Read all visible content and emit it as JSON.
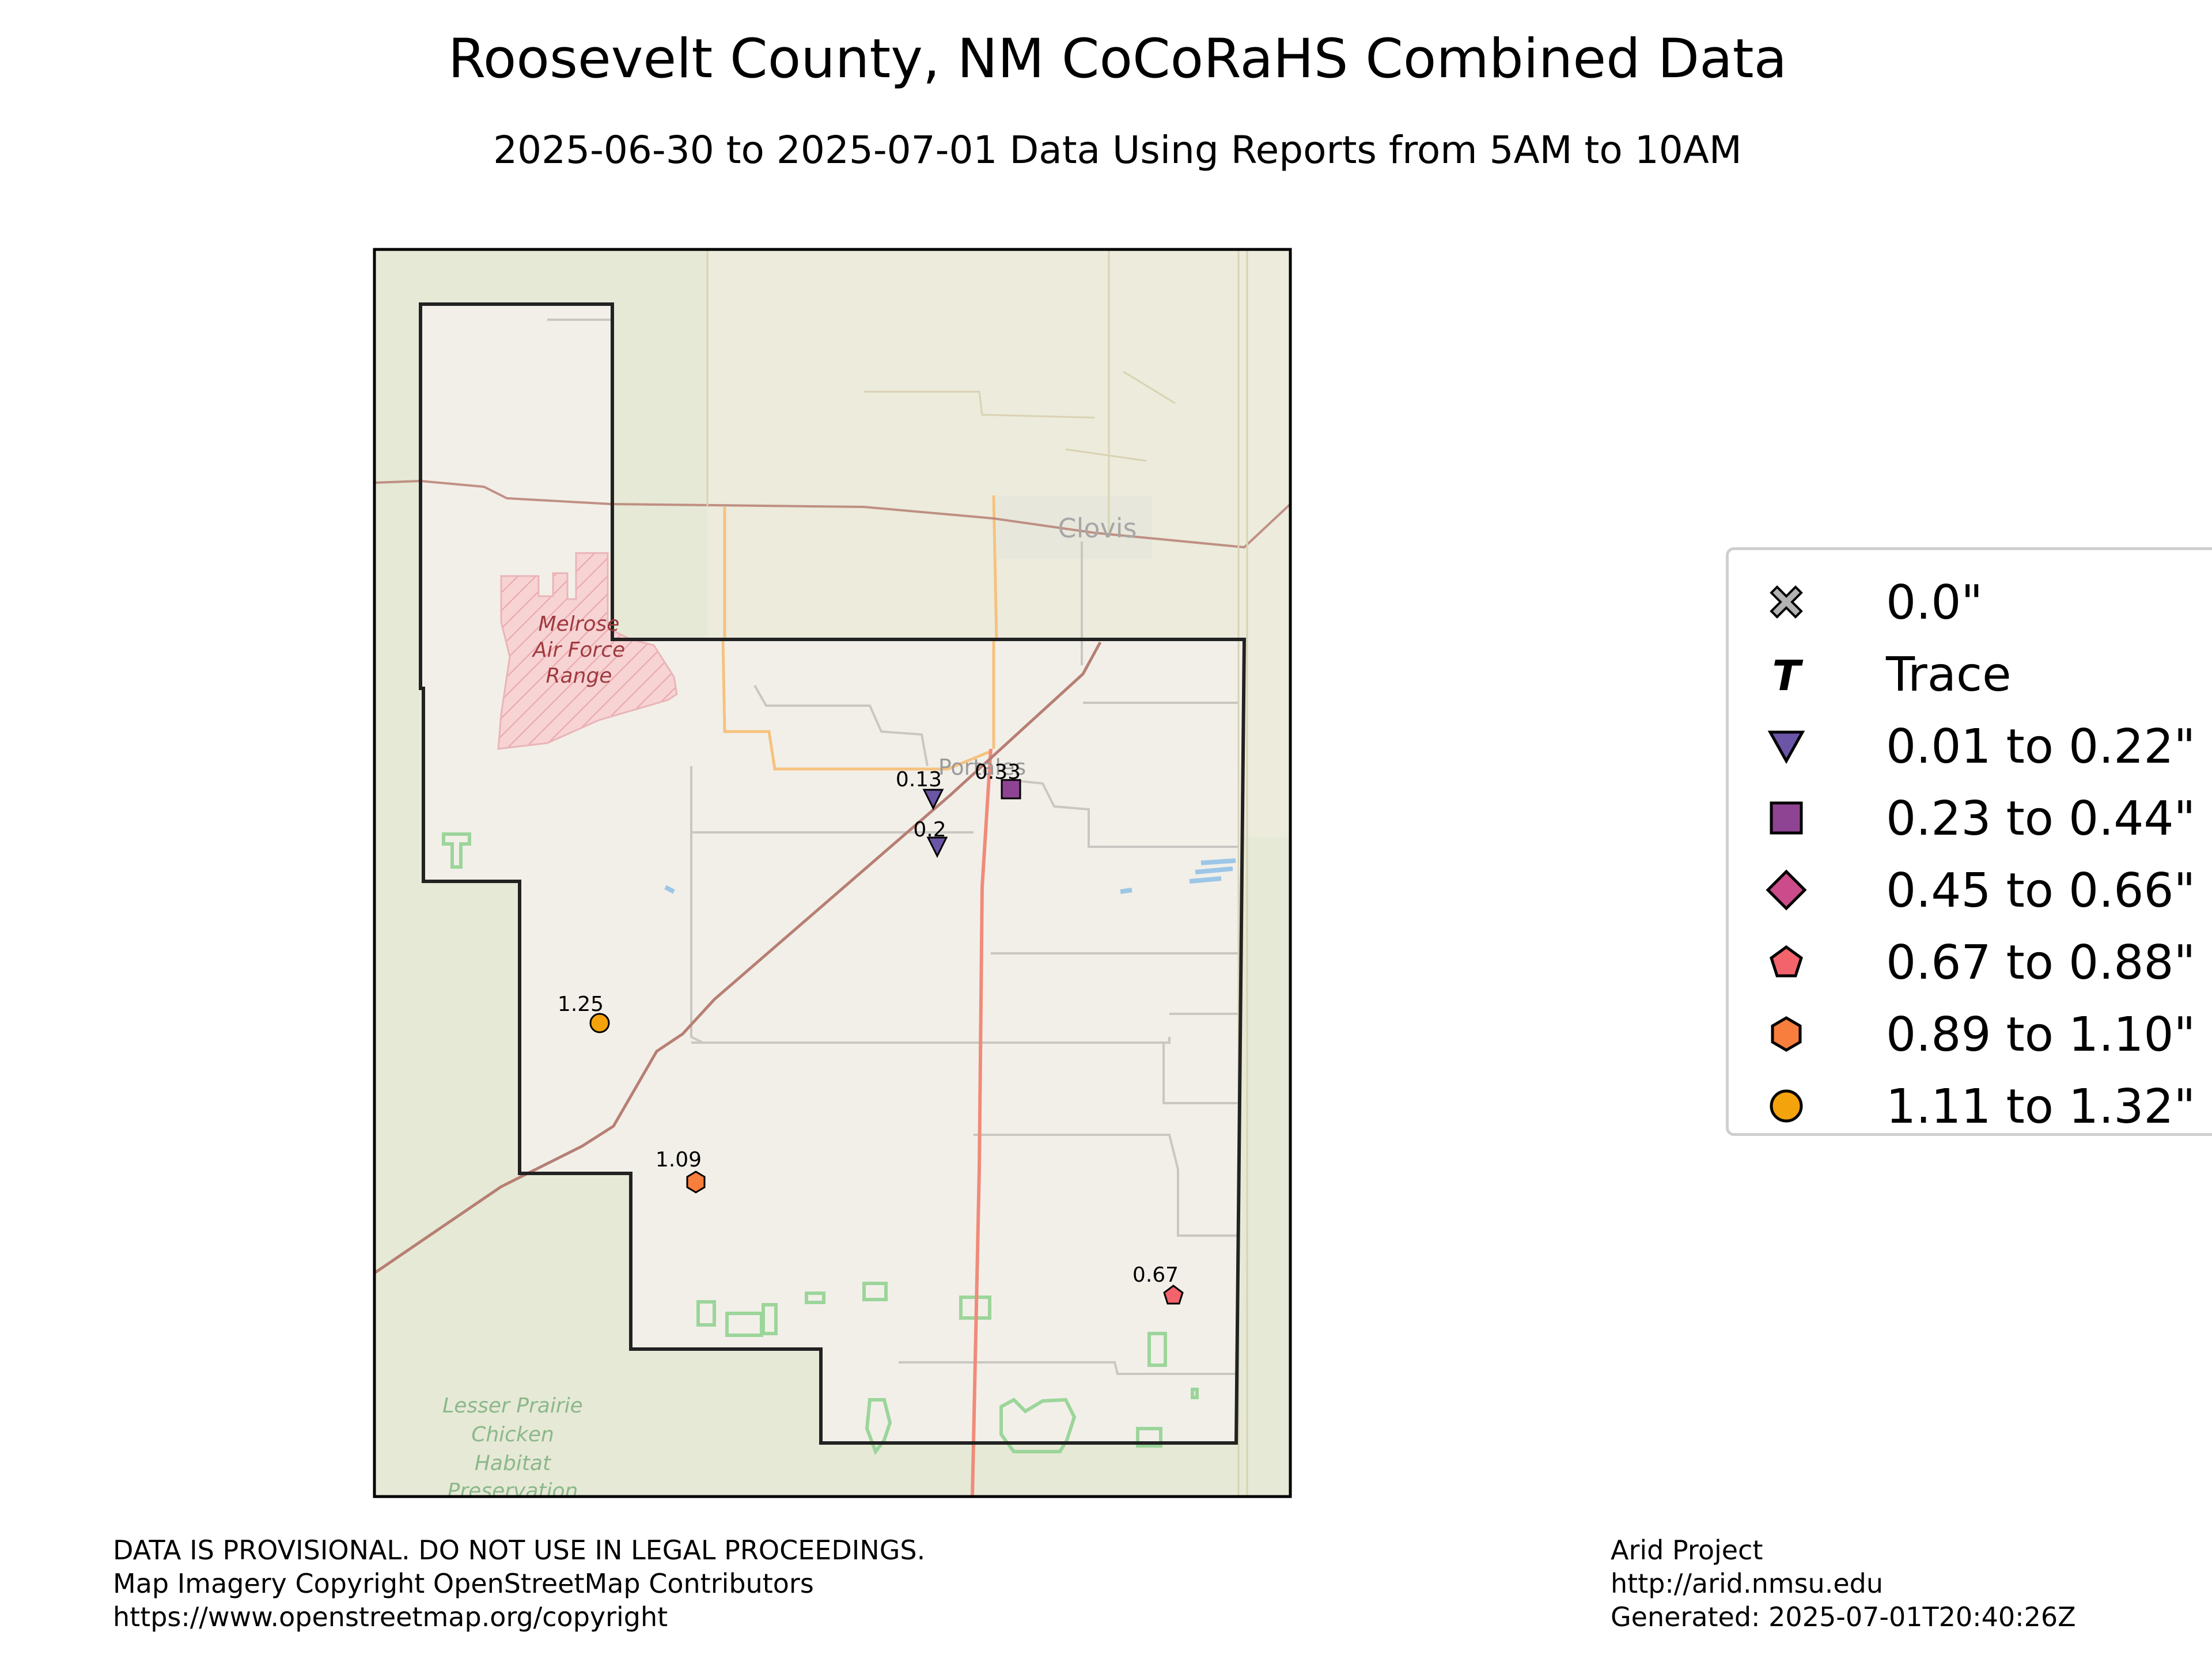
{
  "title": "Roosevelt County, NM CoCoRaHS Combined Data",
  "subtitle": "2025-06-30 to 2025-07-01 Data Using Reports from 5AM to 10AM",
  "map": {
    "places": {
      "clovis": "Clovis",
      "portales": "Portales",
      "melrose": [
        "Melrose",
        "Air Force",
        "Range"
      ],
      "lesser_prairie": [
        "Lesser Prairie",
        "Chicken",
        "Habitat",
        "Preservation"
      ]
    },
    "colors": {
      "land": "#f2efe9",
      "grassland": "#e6e9d6",
      "county_border": "#222222",
      "military_fill": "#f5c6c8",
      "protected_green": "#9cd59a",
      "railway": "#b77f73",
      "primary_road": "#f08b79",
      "secondary_road": "#f6c27f"
    }
  },
  "legend": {
    "items": [
      {
        "label": "0.0\"",
        "icon": "x-marker",
        "color": "#b3b3b3"
      },
      {
        "label": "Trace",
        "icon": "trace-t",
        "color": "#000000"
      },
      {
        "label": "0.01 to 0.22\"",
        "icon": "triangle-down",
        "color": "#6b55a6"
      },
      {
        "label": "0.23 to 0.44\"",
        "icon": "square",
        "color": "#8f4393"
      },
      {
        "label": "0.45 to 0.66\"",
        "icon": "diamond",
        "color": "#cc4c8b"
      },
      {
        "label": "0.67 to 0.88\"",
        "icon": "pentagon",
        "color": "#f2636b"
      },
      {
        "label": "0.89 to 1.10\"",
        "icon": "hexagon",
        "color": "#f77e3c"
      },
      {
        "label": "1.11 to 1.32\"",
        "icon": "circle",
        "color": "#f4a30c"
      }
    ]
  },
  "observations": [
    {
      "value": "0.13",
      "category": "0.01 to 0.22\""
    },
    {
      "value": "0.33",
      "category": "0.23 to 0.44\""
    },
    {
      "value": "0.2",
      "category": "0.01 to 0.22\""
    },
    {
      "value": "1.25",
      "category": "1.11 to 1.32\""
    },
    {
      "value": "1.09",
      "category": "0.89 to 1.10\""
    },
    {
      "value": "0.67",
      "category": "0.67 to 0.88\""
    }
  ],
  "footer": {
    "left": [
      "DATA IS PROVISIONAL. DO NOT USE IN LEGAL PROCEEDINGS.",
      "Map Imagery Copyright OpenStreetMap Contributors",
      "https://www.openstreetmap.org/copyright"
    ],
    "right": [
      "Arid Project",
      "http://arid.nmsu.edu",
      "Generated: 2025-07-01T20:40:26Z"
    ]
  }
}
